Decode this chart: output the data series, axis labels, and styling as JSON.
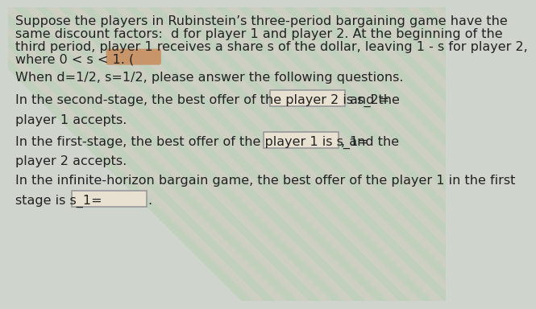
{
  "bg_color": "#cfd5cc",
  "text_color": "#222222",
  "font_size": 11.5,
  "line1": "Suppose the players in Rubinstein’s three-period bargaining game have the",
  "line2": "same discount factors:  d for player 1 and player 2. At the beginning of the",
  "line3": "third period, player 1 receives a share s of the dollar, leaving 1 - s for player 2,",
  "line4_pre": "where 0 < s < 1. (",
  "line5": "When d=1/2, s=1/2, please answer the following questions.",
  "line6_pre": "In the second-stage, the best offer of the player 2 is s_2=",
  "line6_post": "and the",
  "line7": "player 1 accepts.",
  "line8_pre": "In the first-stage, the best offer of the player 1 is s_1=",
  "line8_post": ", and the",
  "line9": "player 2 accepts.",
  "line10": "In the infinite-horizon bargain game, the best offer of the player 1 in the first",
  "line11_pre": "stage is s_1=",
  "orange_box_color": "#c8956a",
  "input_box_color": "#e8e0d0",
  "input_box_border": "#999999",
  "stripe_color_green": "#a8c8a0",
  "stripe_color_tan": "#b8c0b0"
}
